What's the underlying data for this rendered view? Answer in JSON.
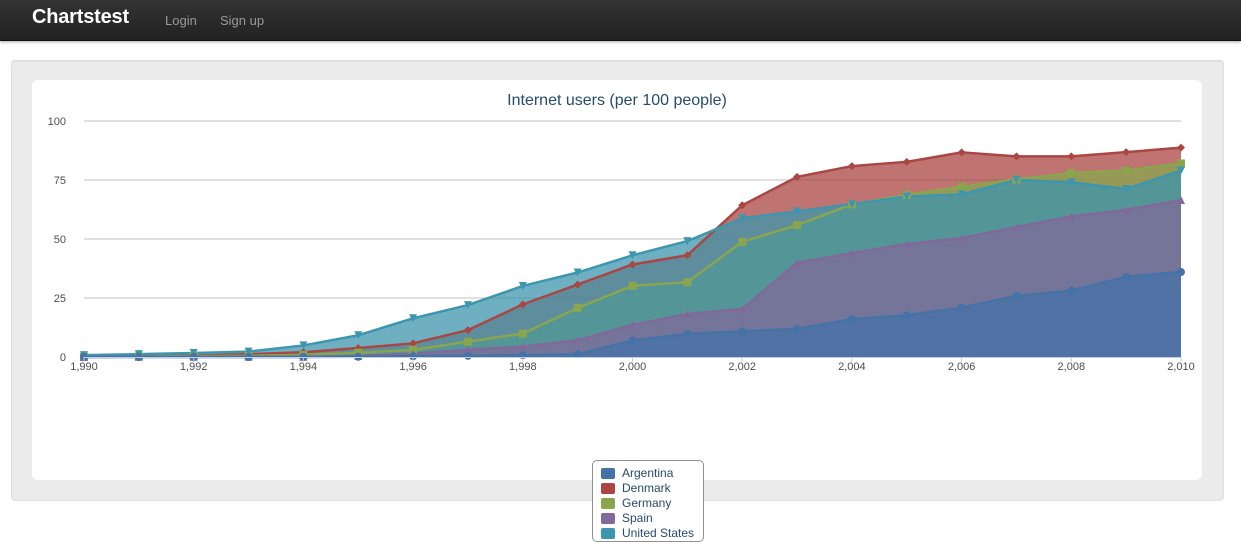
{
  "navbar": {
    "brand": "Chartstest",
    "links": [
      {
        "label": "Login"
      },
      {
        "label": "Sign up"
      }
    ]
  },
  "chart_data": {
    "type": "area",
    "title": "Internet users (per 100 people)",
    "xlabel": "",
    "ylabel": "",
    "xlim": [
      1990,
      2010
    ],
    "ylim": [
      0,
      100
    ],
    "x_ticks": [
      "1,990",
      "1,992",
      "1,994",
      "1,996",
      "1,998",
      "2,000",
      "2,002",
      "2,004",
      "2,006",
      "2,008",
      "2,010"
    ],
    "y_ticks": [
      "0",
      "25",
      "50",
      "75",
      "100"
    ],
    "grid": true,
    "legend_position": "bottom-center",
    "x": [
      1990,
      1991,
      1992,
      1993,
      1994,
      1995,
      1996,
      1997,
      1998,
      1999,
      2000,
      2001,
      2002,
      2003,
      2004,
      2005,
      2006,
      2007,
      2008,
      2009,
      2010
    ],
    "series": [
      {
        "name": "Argentina",
        "color": "#4572a7",
        "marker": "circle",
        "values": [
          0,
          0,
          0,
          0,
          0,
          0.1,
          0.3,
          0.5,
          0.8,
          1.2,
          7,
          9.8,
          10.9,
          11.9,
          16,
          17.7,
          20.9,
          25.9,
          28.1,
          34,
          36
        ]
      },
      {
        "name": "Denmark",
        "color": "#aa4643",
        "marker": "diamond",
        "values": [
          0.1,
          0.3,
          0.6,
          1.2,
          2,
          3.8,
          5.8,
          11.4,
          22.3,
          30.7,
          39.2,
          43.1,
          64.3,
          76.3,
          80.9,
          82.7,
          86.7,
          85,
          85,
          86.8,
          88.7
        ]
      },
      {
        "name": "Germany",
        "color": "#89a54e",
        "marker": "square",
        "values": [
          0.1,
          0.2,
          0.4,
          0.5,
          0.9,
          1.8,
          3,
          6.5,
          9.9,
          20.8,
          30.2,
          31.7,
          48.8,
          55.9,
          64.7,
          68.7,
          72.2,
          75.2,
          78,
          79,
          82
        ]
      },
      {
        "name": "Spain",
        "color": "#80699b",
        "marker": "triangle",
        "values": [
          0,
          0.1,
          0.1,
          0.1,
          0.1,
          0.4,
          1.4,
          3.1,
          4.4,
          7.1,
          13.6,
          18.2,
          20.4,
          39.9,
          44,
          47.9,
          50.4,
          55.1,
          59.6,
          62.4,
          66.5
        ]
      },
      {
        "name": "United States",
        "color": "#3d96ae",
        "marker": "triangle-down",
        "values": [
          0.8,
          1.2,
          1.7,
          2.3,
          4.9,
          9.2,
          16.4,
          22,
          30.1,
          35.8,
          43.1,
          49.1,
          58.8,
          61.7,
          64.8,
          68,
          68.9,
          75,
          74,
          71.2,
          79
        ]
      }
    ]
  }
}
